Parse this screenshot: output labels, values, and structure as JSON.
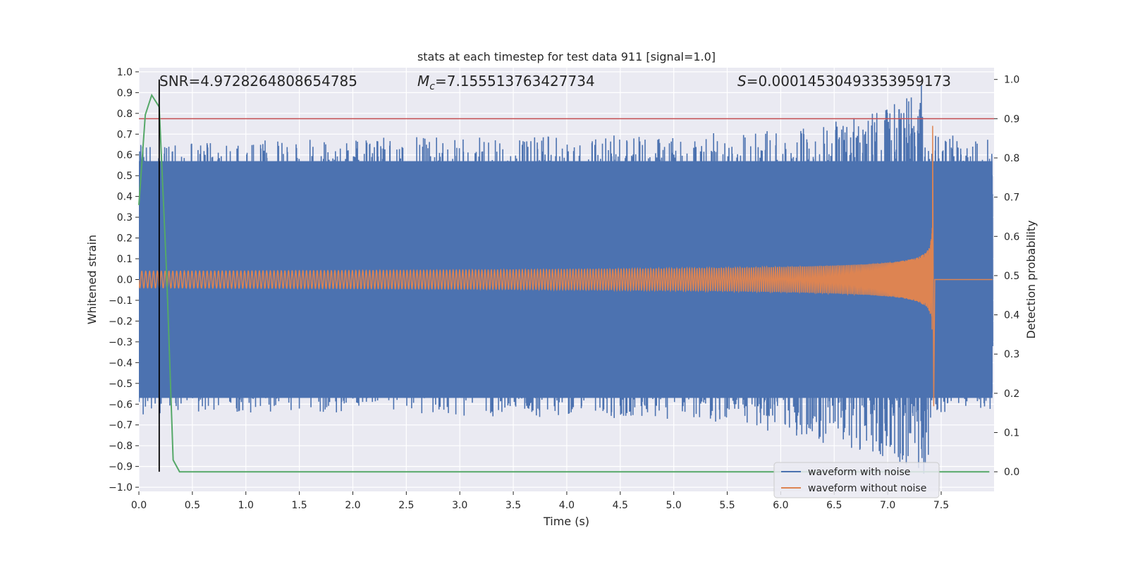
{
  "chart_data": {
    "type": "line",
    "title": "stats at each timestep for test data 911 [signal=1.0]",
    "xlabel": "Time (s)",
    "ylabel_left": "Whitened strain",
    "ylabel_right": "Detection probability",
    "xlim": [
      0.0,
      8.0
    ],
    "ylim_left": [
      -1.02,
      1.02
    ],
    "ylim_right": [
      -0.05,
      1.03
    ],
    "x_ticks": [
      "0.0",
      "0.5",
      "1.0",
      "1.5",
      "2.0",
      "2.5",
      "3.0",
      "3.5",
      "4.0",
      "4.5",
      "5.0",
      "5.5",
      "6.0",
      "6.5",
      "7.0",
      "7.5"
    ],
    "x_tick_values": [
      0.0,
      0.5,
      1.0,
      1.5,
      2.0,
      2.5,
      3.0,
      3.5,
      4.0,
      4.5,
      5.0,
      5.5,
      6.0,
      6.5,
      7.0,
      7.5
    ],
    "y_left_ticks": [
      "1.0",
      "0.9",
      "0.8",
      "0.7",
      "0.6",
      "0.5",
      "0.4",
      "0.3",
      "0.2",
      "0.1",
      "0.0",
      "−0.1",
      "−0.2",
      "−0.3",
      "−0.4",
      "−0.5",
      "−0.6",
      "−0.7",
      "−0.8",
      "−0.9",
      "−1.0"
    ],
    "y_left_tick_values": [
      1.0,
      0.9,
      0.8,
      0.7,
      0.6,
      0.5,
      0.4,
      0.3,
      0.2,
      0.1,
      0.0,
      -0.1,
      -0.2,
      -0.3,
      -0.4,
      -0.5,
      -0.6,
      -0.7,
      -0.8,
      -0.9,
      -1.0
    ],
    "y_right_ticks": [
      "1.0",
      "0.9",
      "0.8",
      "0.7",
      "0.6",
      "0.5",
      "0.4",
      "0.3",
      "0.2",
      "0.1",
      "0.0"
    ],
    "y_right_tick_values": [
      1.0,
      0.9,
      0.8,
      0.7,
      0.6,
      0.5,
      0.4,
      0.3,
      0.2,
      0.1,
      0.0
    ],
    "annotations": {
      "snr": "SNR=4.9728264808654785",
      "mc_symbol": "M",
      "mc_sub": "c",
      "mc_value": "=7.155513763427734",
      "s_symbol": "S",
      "s_value": "=0.00014530493353959173"
    },
    "series": [
      {
        "name": "waveform with noise",
        "color": "#4c72b0",
        "axis": "left",
        "envelope_samples": {
          "t": [
            0.0,
            1.0,
            2.0,
            3.0,
            4.0,
            5.0,
            6.0,
            6.5,
            7.0,
            7.3,
            7.35,
            7.42,
            7.5,
            8.0
          ],
          "max": [
            0.65,
            0.67,
            0.68,
            0.69,
            0.69,
            0.7,
            0.72,
            0.76,
            0.83,
            0.92,
            1.0,
            0.7,
            0.7,
            0.68
          ],
          "min": [
            -0.65,
            -0.64,
            -0.65,
            -0.66,
            -0.67,
            -0.68,
            -0.74,
            -0.8,
            -0.86,
            -0.92,
            -0.98,
            -0.66,
            -0.65,
            -0.64
          ]
        }
      },
      {
        "name": "waveform without noise",
        "color": "#dd8452",
        "axis": "left",
        "chirp": {
          "start_amplitude": 0.04,
          "merger_time": 7.42,
          "peak_max": 0.74,
          "peak_min": -0.61
        }
      },
      {
        "name": "detection probability",
        "color": "#55a868",
        "axis": "right",
        "t": [
          0.0,
          0.06,
          0.12,
          0.19,
          0.26,
          0.32,
          0.38,
          7.95
        ],
        "values": [
          0.68,
          0.91,
          0.96,
          0.93,
          0.5,
          0.03,
          0.0,
          0.0
        ]
      }
    ],
    "threshold_line": {
      "value": 0.9,
      "axis": "right",
      "color": "#c44e52"
    },
    "marker_line": {
      "x": 0.19,
      "color": "#000000"
    },
    "legend": {
      "position": "lower-right",
      "entries": [
        "waveform with noise",
        "waveform without noise"
      ]
    },
    "grid": true
  }
}
